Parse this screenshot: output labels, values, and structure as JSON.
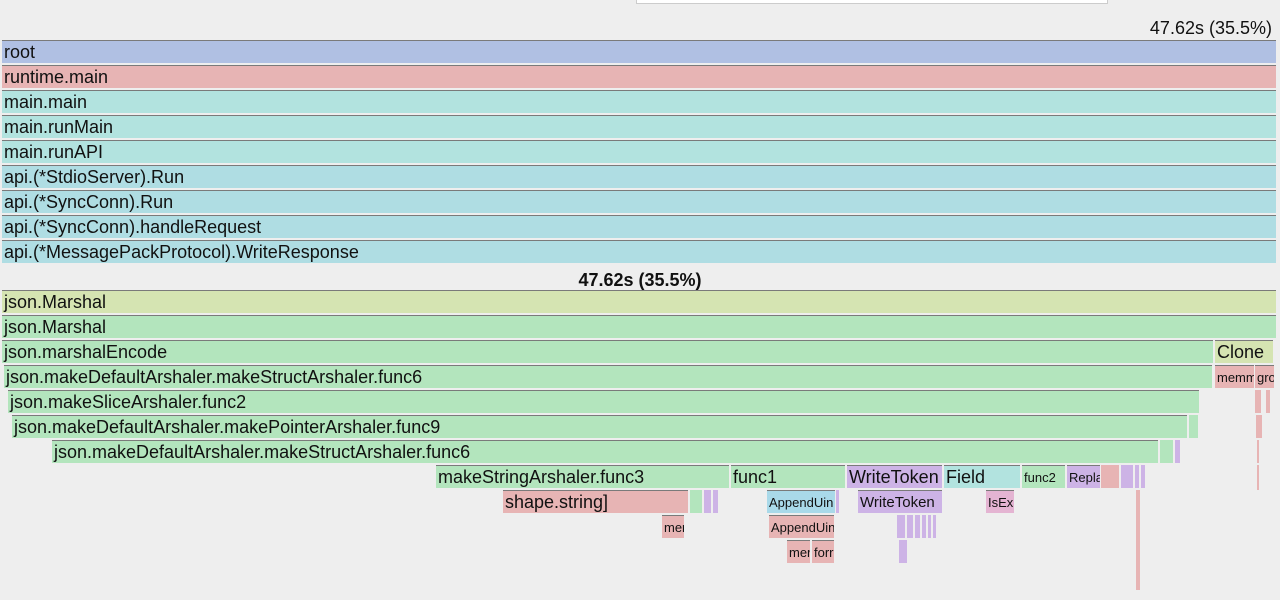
{
  "header": {
    "total": "47.62s (35.5%)",
    "focus_total": "47.62s (35.5%)"
  },
  "colors": {
    "blue": "#b0c0e3",
    "red": "#e7b4b4",
    "teal": "#b2e3df",
    "cyan": "#afdde3",
    "lime": "#d5e4b2",
    "green": "#b3e5bd",
    "purple": "#cdb3e6",
    "pink": "#e4b4d2",
    "cyanlight": "#a9d9e9"
  },
  "stack": [
    "root",
    "runtime.main",
    "main.main",
    "main.runMain",
    "main.runAPI",
    "api.(*StdioServer).Run",
    "api.(*SyncConn).Run",
    "api.(*SyncConn).handleRequest",
    "api.(*MessagePackProtocol).WriteResponse"
  ],
  "flame": {
    "json_marshal_outer": "json.Marshal",
    "json_marshal": "json.Marshal",
    "marshal_encode": "json.marshalEncode",
    "clone": "Clone",
    "struct_func6": "json.makeDefaultArshaler.makeStructArshaler.func6",
    "memmove_short": "memm",
    "gro_short": "gro",
    "slice_func2": "json.makeSliceArshaler.func2",
    "pointer_func9": "json.makeDefaultArshaler.makePointerArshaler.func9",
    "struct_func6_inner": "json.makeDefaultArshaler.makeStructArshaler.func6",
    "string_func3": "makeStringArshaler.func3",
    "func1": "func1",
    "write_token": "WriteToken",
    "field": "Field",
    "func2": "func2",
    "replace_short": "Repla",
    "shape_string": "shape.string]",
    "append_uint_1": "AppendUin",
    "write_token_2": "WriteToken",
    "isex_short": "IsEx",
    "mem_short": "mer",
    "append_uint_2": "AppendUin",
    "mem_short_2": "mer",
    "form_short": "forr"
  }
}
